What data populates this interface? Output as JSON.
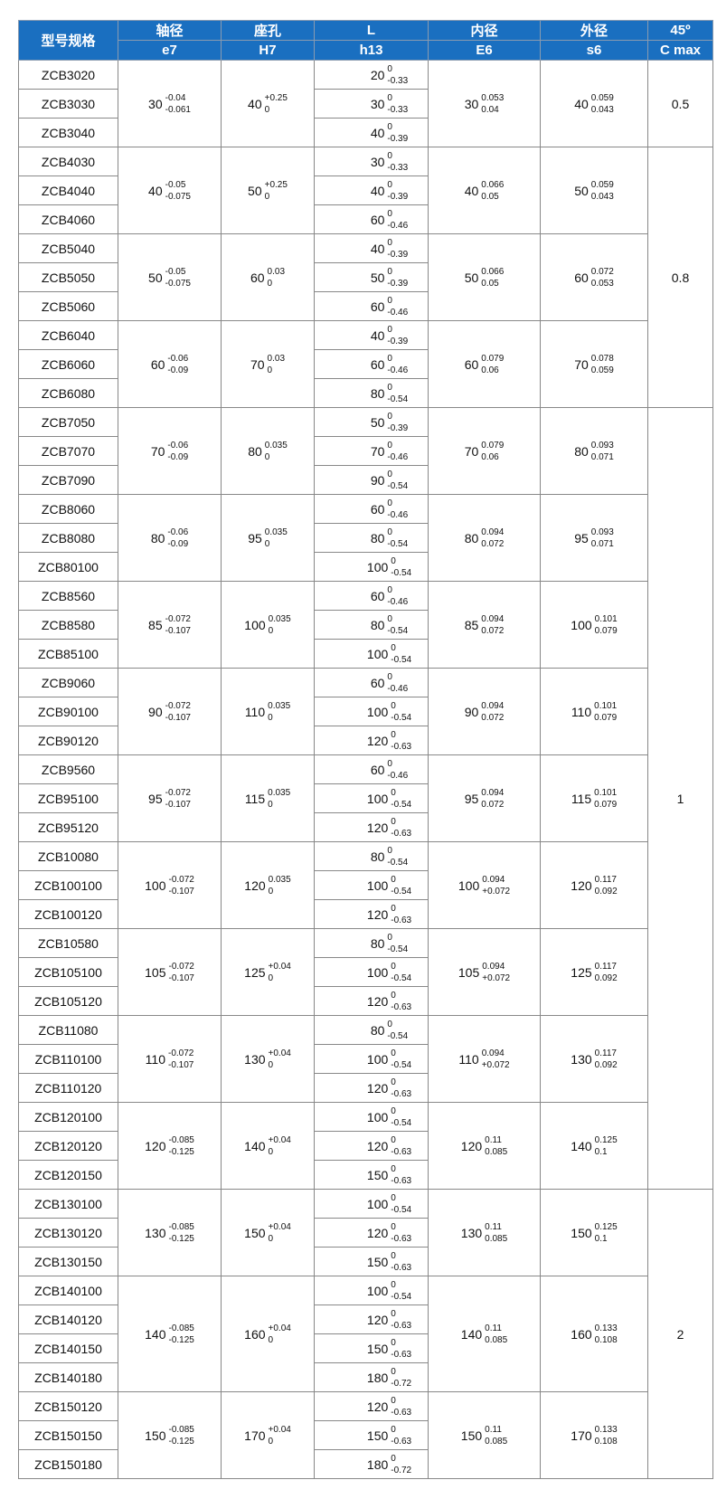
{
  "header": {
    "model": "型号规格",
    "cols": [
      {
        "top": "轴径",
        "bottom": "e7"
      },
      {
        "top": "座孔",
        "bottom": "H7"
      },
      {
        "top": "L",
        "bottom": "h13"
      },
      {
        "top": "内径",
        "bottom": "E6"
      },
      {
        "top": "外径",
        "bottom": "s6"
      },
      {
        "top": "45º",
        "bottom": "C max"
      }
    ]
  },
  "groups": [
    {
      "models": [
        "ZCB3020",
        "ZCB3030",
        "ZCB3040"
      ],
      "e7": {
        "v": "30",
        "u": "-0.04",
        "l": "-0.061"
      },
      "h7": {
        "v": "40",
        "u": "+0.25",
        "l": "0"
      },
      "L": [
        {
          "v": "20",
          "u": "0",
          "l": "-0.33"
        },
        {
          "v": "30",
          "u": "0",
          "l": "-0.33"
        },
        {
          "v": "40",
          "u": "0",
          "l": "-0.39"
        }
      ],
      "e6": {
        "v": "30",
        "u": "0.053",
        "l": "0.04"
      },
      "s6": {
        "v": "40",
        "u": "0.059",
        "l": "0.043"
      },
      "c_max": "0.5"
    },
    {
      "models": [
        "ZCB4030",
        "ZCB4040",
        "ZCB4060"
      ],
      "e7": {
        "v": "40",
        "u": "-0.05",
        "l": "-0.075"
      },
      "h7": {
        "v": "50",
        "u": "+0.25",
        "l": "0"
      },
      "L": [
        {
          "v": "30",
          "u": "0",
          "l": "-0.33"
        },
        {
          "v": "40",
          "u": "0",
          "l": "-0.39"
        },
        {
          "v": "60",
          "u": "0",
          "l": "-0.46"
        }
      ],
      "e6": {
        "v": "40",
        "u": "0.066",
        "l": "0.05"
      },
      "s6": {
        "v": "50",
        "u": "0.059",
        "l": "0.043"
      },
      "c_max": "0.8"
    },
    {
      "models": [
        "ZCB5040",
        "ZCB5050",
        "ZCB5060"
      ],
      "e7": {
        "v": "50",
        "u": "-0.05",
        "l": "-0.075"
      },
      "h7": {
        "v": "60",
        "u": "0.03",
        "l": "0"
      },
      "L": [
        {
          "v": "40",
          "u": "0",
          "l": "-0.39"
        },
        {
          "v": "50",
          "u": "0",
          "l": "-0.39"
        },
        {
          "v": "60",
          "u": "0",
          "l": "-0.46"
        }
      ],
      "e6": {
        "v": "50",
        "u": "0.066",
        "l": "0.05"
      },
      "s6": {
        "v": "60",
        "u": "0.072",
        "l": "0.053"
      }
    },
    {
      "models": [
        "ZCB6040",
        "ZCB6060",
        "ZCB6080"
      ],
      "e7": {
        "v": "60",
        "u": "-0.06",
        "l": "-0.09"
      },
      "h7": {
        "v": "70",
        "u": "0.03",
        "l": "0"
      },
      "L": [
        {
          "v": "40",
          "u": "0",
          "l": "-0.39"
        },
        {
          "v": "60",
          "u": "0",
          "l": "-0.46"
        },
        {
          "v": "80",
          "u": "0",
          "l": "-0.54"
        }
      ],
      "e6": {
        "v": "60",
        "u": "0.079",
        "l": "0.06"
      },
      "s6": {
        "v": "70",
        "u": "0.078",
        "l": "0.059"
      }
    },
    {
      "models": [
        "ZCB7050",
        "ZCB7070",
        "ZCB7090"
      ],
      "e7": {
        "v": "70",
        "u": "-0.06",
        "l": "-0.09"
      },
      "h7": {
        "v": "80",
        "u": "0.035",
        "l": "0"
      },
      "L": [
        {
          "v": "50",
          "u": "0",
          "l": "-0.39"
        },
        {
          "v": "70",
          "u": "0",
          "l": "-0.46"
        },
        {
          "v": "90",
          "u": "0",
          "l": "-0.54"
        }
      ],
      "e6": {
        "v": "70",
        "u": "0.079",
        "l": "0.06"
      },
      "s6": {
        "v": "80",
        "u": "0.093",
        "l": "0.071"
      },
      "c_max": "1"
    },
    {
      "models": [
        "ZCB8060",
        "ZCB8080",
        "ZCB80100"
      ],
      "e7": {
        "v": "80",
        "u": "-0.06",
        "l": "-0.09"
      },
      "h7": {
        "v": "95",
        "u": "0.035",
        "l": "0"
      },
      "L": [
        {
          "v": "60",
          "u": "0",
          "l": "-0.46"
        },
        {
          "v": "80",
          "u": "0",
          "l": "-0.54"
        },
        {
          "v": "100",
          "u": "0",
          "l": "-0.54"
        }
      ],
      "e6": {
        "v": "80",
        "u": "0.094",
        "l": "0.072"
      },
      "s6": {
        "v": "95",
        "u": "0.093",
        "l": "0.071"
      }
    },
    {
      "models": [
        "ZCB8560",
        "ZCB8580",
        "ZCB85100"
      ],
      "e7": {
        "v": "85",
        "u": "-0.072",
        "l": "-0.107"
      },
      "h7": {
        "v": "100",
        "u": "0.035",
        "l": "0"
      },
      "L": [
        {
          "v": "60",
          "u": "0",
          "l": "-0.46"
        },
        {
          "v": "80",
          "u": "0",
          "l": "-0.54"
        },
        {
          "v": "100",
          "u": "0",
          "l": "-0.54"
        }
      ],
      "e6": {
        "v": "85",
        "u": "0.094",
        "l": "0.072"
      },
      "s6": {
        "v": "100",
        "u": "0.101",
        "l": "0.079"
      }
    },
    {
      "models": [
        "ZCB9060",
        "ZCB90100",
        "ZCB90120"
      ],
      "e7": {
        "v": "90",
        "u": "-0.072",
        "l": "-0.107"
      },
      "h7": {
        "v": "110",
        "u": "0.035",
        "l": "0"
      },
      "L": [
        {
          "v": "60",
          "u": "0",
          "l": "-0.46"
        },
        {
          "v": "100",
          "u": "0",
          "l": "-0.54"
        },
        {
          "v": "120",
          "u": "0",
          "l": "-0.63"
        }
      ],
      "e6": {
        "v": "90",
        "u": "0.094",
        "l": "0.072"
      },
      "s6": {
        "v": "110",
        "u": "0.101",
        "l": "0.079"
      }
    },
    {
      "models": [
        "ZCB9560",
        "ZCB95100",
        "ZCB95120"
      ],
      "e7": {
        "v": "95",
        "u": "-0.072",
        "l": "-0.107"
      },
      "h7": {
        "v": "115",
        "u": "0.035",
        "l": "0"
      },
      "L": [
        {
          "v": "60",
          "u": "0",
          "l": "-0.46"
        },
        {
          "v": "100",
          "u": "0",
          "l": "-0.54"
        },
        {
          "v": "120",
          "u": "0",
          "l": "-0.63"
        }
      ],
      "e6": {
        "v": "95",
        "u": "0.094",
        "l": "0.072"
      },
      "s6": {
        "v": "115",
        "u": "0.101",
        "l": "0.079"
      }
    },
    {
      "models": [
        "ZCB10080",
        "ZCB100100",
        "ZCB100120"
      ],
      "e7": {
        "v": "100",
        "u": "-0.072",
        "l": "-0.107"
      },
      "h7": {
        "v": "120",
        "u": "0.035",
        "l": "0"
      },
      "L": [
        {
          "v": "80",
          "u": "0",
          "l": "-0.54"
        },
        {
          "v": "100",
          "u": "0",
          "l": "-0.54"
        },
        {
          "v": "120",
          "u": "0",
          "l": "-0.63"
        }
      ],
      "e6": {
        "v": "100",
        "u": "0.094",
        "l": "+0.072"
      },
      "s6": {
        "v": "120",
        "u": "0.117",
        "l": "0.092"
      }
    },
    {
      "models": [
        "ZCB10580",
        "ZCB105100",
        "ZCB105120"
      ],
      "e7": {
        "v": "105",
        "u": "-0.072",
        "l": "-0.107"
      },
      "h7": {
        "v": "125",
        "u": "+0.04",
        "l": "0"
      },
      "L": [
        {
          "v": "80",
          "u": "0",
          "l": "-0.54"
        },
        {
          "v": "100",
          "u": "0",
          "l": "-0.54"
        },
        {
          "v": "120",
          "u": "0",
          "l": "-0.63"
        }
      ],
      "e6": {
        "v": "105",
        "u": "0.094",
        "l": "+0.072"
      },
      "s6": {
        "v": "125",
        "u": "0.117",
        "l": "0.092"
      }
    },
    {
      "models": [
        "ZCB11080",
        "ZCB110100",
        "ZCB110120"
      ],
      "e7": {
        "v": "110",
        "u": "-0.072",
        "l": "-0.107"
      },
      "h7": {
        "v": "130",
        "u": "+0.04",
        "l": "0"
      },
      "L": [
        {
          "v": "80",
          "u": "0",
          "l": "-0.54"
        },
        {
          "v": "100",
          "u": "0",
          "l": "-0.54"
        },
        {
          "v": "120",
          "u": "0",
          "l": "-0.63"
        }
      ],
      "e6": {
        "v": "110",
        "u": "0.094",
        "l": "+0.072"
      },
      "s6": {
        "v": "130",
        "u": "0.117",
        "l": "0.092"
      }
    },
    {
      "models": [
        "ZCB120100",
        "ZCB120120",
        "ZCB120150"
      ],
      "e7": {
        "v": "120",
        "u": "-0.085",
        "l": "-0.125"
      },
      "h7": {
        "v": "140",
        "u": "+0.04",
        "l": "0"
      },
      "L": [
        {
          "v": "100",
          "u": "0",
          "l": "-0.54"
        },
        {
          "v": "120",
          "u": "0",
          "l": "-0.63"
        },
        {
          "v": "150",
          "u": "0",
          "l": "-0.63"
        }
      ],
      "e6": {
        "v": "120",
        "u": "0.11",
        "l": "0.085"
      },
      "s6": {
        "v": "140",
        "u": "0.125",
        "l": "0.1"
      }
    },
    {
      "models": [
        "ZCB130100",
        "ZCB130120",
        "ZCB130150"
      ],
      "e7": {
        "v": "130",
        "u": "-0.085",
        "l": "-0.125"
      },
      "h7": {
        "v": "150",
        "u": "+0.04",
        "l": "0"
      },
      "L": [
        {
          "v": "100",
          "u": "0",
          "l": "-0.54"
        },
        {
          "v": "120",
          "u": "0",
          "l": "-0.63"
        },
        {
          "v": "150",
          "u": "0",
          "l": "-0.63"
        }
      ],
      "e6": {
        "v": "130",
        "u": "0.11",
        "l": "0.085"
      },
      "s6": {
        "v": "150",
        "u": "0.125",
        "l": "0.1"
      },
      "c_max": "2"
    },
    {
      "models": [
        "ZCB140100",
        "ZCB140120",
        "ZCB140150",
        "ZCB140180"
      ],
      "e7": {
        "v": "140",
        "u": "-0.085",
        "l": "-0.125"
      },
      "h7": {
        "v": "160",
        "u": "+0.04",
        "l": "0"
      },
      "L": [
        {
          "v": "100",
          "u": "0",
          "l": "-0.54"
        },
        {
          "v": "120",
          "u": "0",
          "l": "-0.63"
        },
        {
          "v": "150",
          "u": "0",
          "l": "-0.63"
        },
        {
          "v": "180",
          "u": "0",
          "l": "-0.72"
        }
      ],
      "e6": {
        "v": "140",
        "u": "0.11",
        "l": "0.085"
      },
      "s6": {
        "v": "160",
        "u": "0.133",
        "l": "0.108"
      }
    },
    {
      "models": [
        "ZCB150120",
        "ZCB150150",
        "ZCB150180"
      ],
      "e7": {
        "v": "150",
        "u": "-0.085",
        "l": "-0.125"
      },
      "h7": {
        "v": "170",
        "u": "+0.04",
        "l": "0"
      },
      "L": [
        {
          "v": "120",
          "u": "0",
          "l": "-0.63"
        },
        {
          "v": "150",
          "u": "0",
          "l": "-0.63"
        },
        {
          "v": "180",
          "u": "0",
          "l": "-0.72"
        }
      ],
      "e6": {
        "v": "150",
        "u": "0.11",
        "l": "0.085"
      },
      "s6": {
        "v": "170",
        "u": "0.133",
        "l": "0.108"
      }
    }
  ]
}
